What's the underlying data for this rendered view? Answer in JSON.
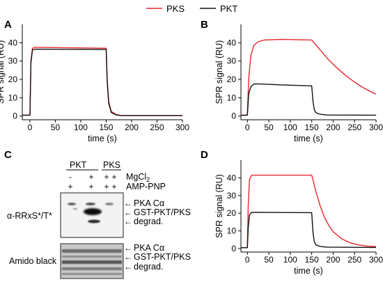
{
  "legend": {
    "placement": "top-center",
    "items": [
      {
        "label": "PKS",
        "color": "#e8262d"
      },
      {
        "label": "PKT",
        "color": "#111111"
      }
    ]
  },
  "chart_data": [
    {
      "panel": "A",
      "type": "line",
      "xlabel": "time (s)",
      "ylabel": "SPR signal (RU)",
      "xlim": [
        -15,
        300
      ],
      "ylim": [
        -2,
        50
      ],
      "xticks": [
        0,
        50,
        100,
        150,
        200,
        250,
        300
      ],
      "yticks": [
        0,
        10,
        20,
        30,
        40
      ],
      "series": [
        {
          "name": "PKS",
          "color": "#e8262d",
          "x": [
            -15,
            0,
            2,
            5,
            10,
            150,
            152,
            155,
            160,
            170,
            180,
            300
          ],
          "y": [
            0.5,
            0.5,
            30,
            37,
            37.5,
            37,
            20,
            8,
            2.5,
            0.8,
            0.3,
            0.3
          ]
        },
        {
          "name": "PKT",
          "color": "#111111",
          "x": [
            -15,
            0,
            2,
            5,
            10,
            150,
            152,
            155,
            160,
            170,
            180,
            300
          ],
          "y": [
            0.5,
            0.5,
            29,
            36,
            36.5,
            36.3,
            19,
            7,
            2,
            0.6,
            0.3,
            0.3
          ]
        }
      ]
    },
    {
      "panel": "B",
      "type": "line",
      "xlabel": "time (s)",
      "ylabel": "SPR signal (RU)",
      "xlim": [
        -15,
        300
      ],
      "ylim": [
        -2,
        50
      ],
      "xticks": [
        0,
        50,
        100,
        150,
        200,
        250,
        300
      ],
      "yticks": [
        0,
        10,
        20,
        30,
        40
      ],
      "series": [
        {
          "name": "PKS",
          "color": "#e8262d",
          "x": [
            -15,
            0,
            3,
            8,
            15,
            25,
            40,
            80,
            150,
            170,
            190,
            210,
            230,
            250,
            270,
            290,
            300
          ],
          "y": [
            0.5,
            0.5,
            20,
            33,
            38.5,
            40.5,
            41.5,
            41.8,
            41.5,
            36,
            30.5,
            26,
            22,
            18.5,
            15.5,
            13,
            12
          ]
        },
        {
          "name": "PKT",
          "color": "#111111",
          "x": [
            -15,
            0,
            3,
            8,
            15,
            30,
            80,
            150,
            153,
            156,
            160,
            170,
            185,
            300
          ],
          "y": [
            0.5,
            0.5,
            12,
            16,
            17.5,
            17.5,
            17,
            16.5,
            8,
            3.5,
            1.8,
            1,
            0.6,
            0.5
          ]
        }
      ]
    },
    {
      "panel": "D",
      "type": "line",
      "xlabel": "time (s)",
      "ylabel": "SPR signal (RU)",
      "xlim": [
        -15,
        300
      ],
      "ylim": [
        -2,
        50
      ],
      "xticks": [
        0,
        50,
        100,
        150,
        200,
        250,
        300
      ],
      "yticks": [
        0,
        10,
        20,
        30,
        40
      ],
      "series": [
        {
          "name": "PKS",
          "color": "#e8262d",
          "x": [
            -15,
            0,
            2,
            5,
            10,
            150,
            155,
            160,
            170,
            180,
            190,
            200,
            220,
            240,
            260,
            280,
            300
          ],
          "y": [
            0.5,
            0.5,
            25,
            39,
            41.5,
            41.5,
            37,
            32,
            24,
            17.5,
            13,
            9.5,
            5.5,
            3.2,
            2,
            1.4,
            1.1
          ]
        },
        {
          "name": "PKT",
          "color": "#111111",
          "x": [
            -15,
            0,
            2,
            5,
            10,
            150,
            153,
            156,
            160,
            170,
            185,
            300
          ],
          "y": [
            0.5,
            0.5,
            12,
            19,
            20.5,
            20.3,
            9,
            4,
            2,
            1.2,
            0.8,
            0.6
          ]
        }
      ]
    }
  ],
  "blot": {
    "panel": "C",
    "groups": [
      "PKT",
      "PKS"
    ],
    "conditions": [
      {
        "label": "MgCl2",
        "values": [
          "-",
          "+",
          "+",
          "+"
        ]
      },
      {
        "label": "AMP-PNP",
        "values": [
          "+",
          "+",
          "+",
          "+"
        ]
      }
    ],
    "western": {
      "label": "α-RRxS*/T*",
      "bands": [
        "PKA Cα",
        "GST-PKT/PKS",
        "degrad."
      ]
    },
    "amido": {
      "label": "Amido black",
      "bands": [
        "PKA Cα",
        "GST-PKT/PKS",
        "degrad."
      ]
    }
  }
}
